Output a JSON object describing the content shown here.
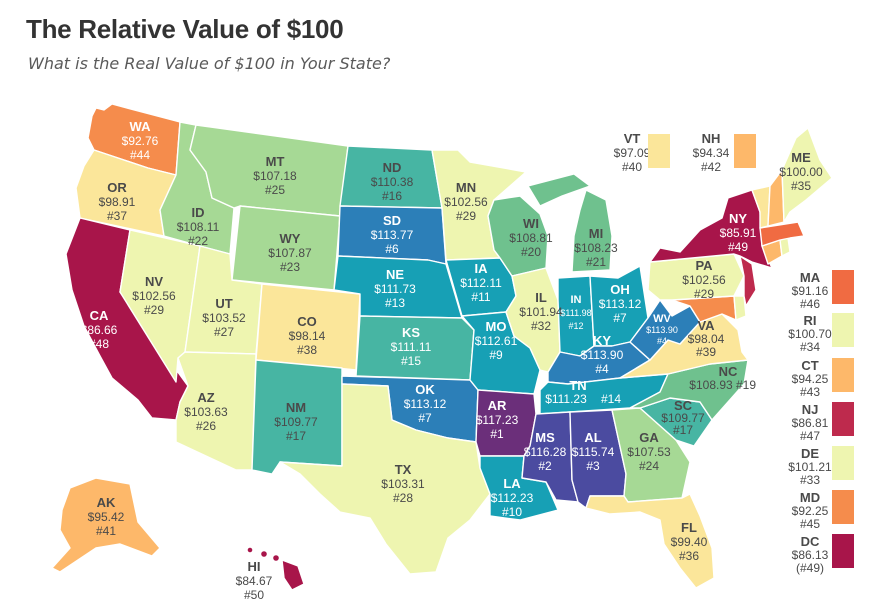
{
  "title": "The Relative Value of $100",
  "subtitle": "What is the Real Value of $100 in Your State?",
  "colors": {
    "tier1": "#6b2f7a",
    "tier2": "#4b4ba0",
    "tier3": "#2c7fb8",
    "tier4": "#17a0b5",
    "tier5": "#47b5a3",
    "tier6": "#6fc18e",
    "tier7": "#a6d995",
    "tier8": "#eef5b0",
    "tier9": "#fbe69a",
    "tier10": "#fdb86a",
    "tier11": "#f58c4c",
    "tier12": "#f06b42",
    "tier13": "#be2a4d",
    "tier14": "#a8154a"
  },
  "states": {
    "WA": {
      "code": "WA",
      "value": "$92.76",
      "rank": "#44"
    },
    "OR": {
      "code": "OR",
      "value": "$98.91",
      "rank": "#37"
    },
    "CA": {
      "code": "CA",
      "value": "$86.66",
      "rank": "#48"
    },
    "NV": {
      "code": "NV",
      "value": "$102.56",
      "rank": "#29"
    },
    "ID": {
      "code": "ID",
      "value": "$108.11",
      "rank": "#22"
    },
    "MT": {
      "code": "MT",
      "value": "$107.18",
      "rank": "#25"
    },
    "WY": {
      "code": "WY",
      "value": "$107.87",
      "rank": "#23"
    },
    "UT": {
      "code": "UT",
      "value": "$103.52",
      "rank": "#27"
    },
    "AZ": {
      "code": "AZ",
      "value": "$103.63",
      "rank": "#26"
    },
    "CO": {
      "code": "CO",
      "value": "$98.14",
      "rank": "#38"
    },
    "NM": {
      "code": "NM",
      "value": "$109.77",
      "rank": "#17"
    },
    "ND": {
      "code": "ND",
      "value": "$110.38",
      "rank": "#16"
    },
    "SD": {
      "code": "SD",
      "value": "$113.77",
      "rank": "#6"
    },
    "NE": {
      "code": "NE",
      "value": "$111.73",
      "rank": "#13"
    },
    "KS": {
      "code": "KS",
      "value": "$111.11",
      "rank": "#15"
    },
    "OK": {
      "code": "OK",
      "value": "$113.12",
      "rank": "#7"
    },
    "TX": {
      "code": "TX",
      "value": "$103.31",
      "rank": "#28"
    },
    "MN": {
      "code": "MN",
      "value": "$102.56",
      "rank": "#29"
    },
    "IA": {
      "code": "IA",
      "value": "$112.11",
      "rank": "#11"
    },
    "MO": {
      "code": "MO",
      "value": "$112.61",
      "rank": "#9"
    },
    "AR": {
      "code": "AR",
      "value": "$117.23",
      "rank": "#1"
    },
    "LA": {
      "code": "LA",
      "value": "$112.23",
      "rank": "#10"
    },
    "WI": {
      "code": "WI",
      "value": "$108.81",
      "rank": "#20"
    },
    "IL": {
      "code": "IL",
      "value": "$101.94",
      "rank": "#32"
    },
    "MI": {
      "code": "MI",
      "value": "$108.23",
      "rank": "#21"
    },
    "IN": {
      "code": "IN",
      "value": "$111.98",
      "rank": "#12"
    },
    "OH": {
      "code": "OH",
      "value": "$113.12",
      "rank": "#7"
    },
    "KY": {
      "code": "KY",
      "value": "$113.90",
      "rank": "#4"
    },
    "TN": {
      "code": "TN",
      "value": "$111.23",
      "rank": "#14"
    },
    "MS": {
      "code": "MS",
      "value": "$116.28",
      "rank": "#2"
    },
    "AL": {
      "code": "AL",
      "value": "$115.74",
      "rank": "#3"
    },
    "GA": {
      "code": "GA",
      "value": "$107.53",
      "rank": "#24"
    },
    "FL": {
      "code": "FL",
      "value": "$99.40",
      "rank": "#36"
    },
    "SC": {
      "code": "SC",
      "value": "$109.77",
      "rank": "#17"
    },
    "NC": {
      "code": "NC",
      "value": "$108.93",
      "rank": "#19"
    },
    "VA": {
      "code": "VA",
      "value": "$98.04",
      "rank": "#39"
    },
    "WV": {
      "code": "WV",
      "value": "$113.90",
      "rank": "#4"
    },
    "PA": {
      "code": "PA",
      "value": "$102.56",
      "rank": "#29"
    },
    "NY": {
      "code": "NY",
      "value": "$85.91",
      "rank": "#49"
    },
    "ME": {
      "code": "ME",
      "value": "$100.00",
      "rank": "#35"
    },
    "VT": {
      "code": "VT",
      "value": "$97.09",
      "rank": "#40"
    },
    "NH": {
      "code": "NH",
      "value": "$94.34",
      "rank": "#42"
    },
    "AK": {
      "code": "AK",
      "value": "$95.42",
      "rank": "#41"
    },
    "HI": {
      "code": "HI",
      "value": "$84.67",
      "rank": "#50"
    }
  },
  "side_legend": [
    {
      "code": "MA",
      "value": "$91.16",
      "rank": "#46"
    },
    {
      "code": "RI",
      "value": "$100.70",
      "rank": "#34"
    },
    {
      "code": "CT",
      "value": "$94.25",
      "rank": "#43"
    },
    {
      "code": "NJ",
      "value": "$86.81",
      "rank": "#47"
    },
    {
      "code": "DE",
      "value": "$101.21",
      "rank": "#33"
    },
    {
      "code": "MD",
      "value": "$92.25",
      "rank": "#45"
    },
    {
      "code": "DC",
      "value": "$86.13",
      "rank": "(#49)"
    }
  ]
}
